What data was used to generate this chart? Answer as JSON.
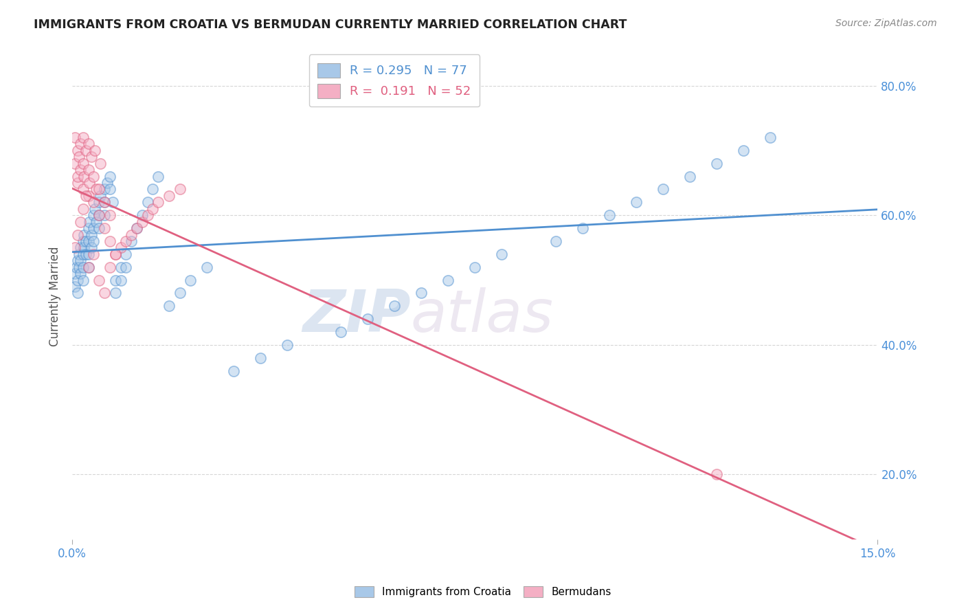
{
  "title": "IMMIGRANTS FROM CROATIA VS BERMUDAN CURRENTLY MARRIED CORRELATION CHART",
  "source": "Source: ZipAtlas.com",
  "ylabel": "Currently Married",
  "xlim": [
    0.0,
    0.15
  ],
  "ylim": [
    0.1,
    0.85
  ],
  "yticks": [
    0.2,
    0.4,
    0.6,
    0.8
  ],
  "ytick_labels": [
    "20.0%",
    "40.0%",
    "60.0%",
    "80.0%"
  ],
  "xtick_labels": [
    "0.0%",
    "15.0%"
  ],
  "legend_R_croatia": "0.295",
  "legend_N_croatia": "77",
  "legend_R_bermuda": "0.191",
  "legend_N_bermuda": "52",
  "color_croatia": "#a8c8e8",
  "color_bermuda": "#f4afc4",
  "line_color_croatia": "#5090d0",
  "line_color_bermuda": "#e06080",
  "watermark_zip": "ZIP",
  "watermark_atlas": "atlas",
  "background_color": "#ffffff",
  "croatia_scatter_x": [
    0.0005,
    0.0005,
    0.0008,
    0.001,
    0.001,
    0.001,
    0.0012,
    0.0012,
    0.0015,
    0.0015,
    0.0015,
    0.002,
    0.002,
    0.002,
    0.002,
    0.0022,
    0.0022,
    0.0025,
    0.0025,
    0.003,
    0.003,
    0.003,
    0.003,
    0.0032,
    0.0035,
    0.0035,
    0.004,
    0.004,
    0.004,
    0.0042,
    0.0045,
    0.005,
    0.005,
    0.005,
    0.0052,
    0.006,
    0.006,
    0.006,
    0.0065,
    0.007,
    0.007,
    0.0075,
    0.008,
    0.008,
    0.009,
    0.009,
    0.01,
    0.01,
    0.011,
    0.012,
    0.013,
    0.014,
    0.015,
    0.016,
    0.018,
    0.02,
    0.022,
    0.025,
    0.03,
    0.035,
    0.04,
    0.05,
    0.055,
    0.06,
    0.065,
    0.07,
    0.075,
    0.08,
    0.09,
    0.095,
    0.1,
    0.105,
    0.11,
    0.115,
    0.12,
    0.125,
    0.13
  ],
  "croatia_scatter_y": [
    0.51,
    0.49,
    0.52,
    0.53,
    0.5,
    0.48,
    0.54,
    0.52,
    0.55,
    0.53,
    0.51,
    0.56,
    0.54,
    0.52,
    0.5,
    0.57,
    0.55,
    0.56,
    0.54,
    0.58,
    0.56,
    0.54,
    0.52,
    0.59,
    0.57,
    0.55,
    0.6,
    0.58,
    0.56,
    0.61,
    0.59,
    0.62,
    0.6,
    0.58,
    0.63,
    0.64,
    0.62,
    0.6,
    0.65,
    0.66,
    0.64,
    0.62,
    0.5,
    0.48,
    0.52,
    0.5,
    0.54,
    0.52,
    0.56,
    0.58,
    0.6,
    0.62,
    0.64,
    0.66,
    0.46,
    0.48,
    0.5,
    0.52,
    0.36,
    0.38,
    0.4,
    0.42,
    0.44,
    0.46,
    0.48,
    0.5,
    0.52,
    0.54,
    0.56,
    0.58,
    0.6,
    0.62,
    0.64,
    0.66,
    0.68,
    0.7,
    0.72
  ],
  "bermuda_scatter_x": [
    0.0005,
    0.0005,
    0.001,
    0.001,
    0.001,
    0.0012,
    0.0015,
    0.0015,
    0.002,
    0.002,
    0.002,
    0.0022,
    0.0025,
    0.003,
    0.003,
    0.003,
    0.0032,
    0.0035,
    0.004,
    0.004,
    0.0042,
    0.0045,
    0.005,
    0.005,
    0.0052,
    0.006,
    0.006,
    0.007,
    0.007,
    0.008,
    0.009,
    0.01,
    0.011,
    0.012,
    0.013,
    0.014,
    0.015,
    0.016,
    0.018,
    0.02,
    0.0005,
    0.001,
    0.0015,
    0.002,
    0.0025,
    0.003,
    0.004,
    0.005,
    0.006,
    0.007,
    0.008,
    0.12
  ],
  "bermuda_scatter_y": [
    0.68,
    0.72,
    0.65,
    0.7,
    0.66,
    0.69,
    0.67,
    0.71,
    0.64,
    0.68,
    0.72,
    0.66,
    0.7,
    0.63,
    0.67,
    0.71,
    0.65,
    0.69,
    0.62,
    0.66,
    0.7,
    0.64,
    0.6,
    0.64,
    0.68,
    0.58,
    0.62,
    0.56,
    0.6,
    0.54,
    0.55,
    0.56,
    0.57,
    0.58,
    0.59,
    0.6,
    0.61,
    0.62,
    0.63,
    0.64,
    0.55,
    0.57,
    0.59,
    0.61,
    0.63,
    0.52,
    0.54,
    0.5,
    0.48,
    0.52,
    0.54,
    0.2
  ]
}
